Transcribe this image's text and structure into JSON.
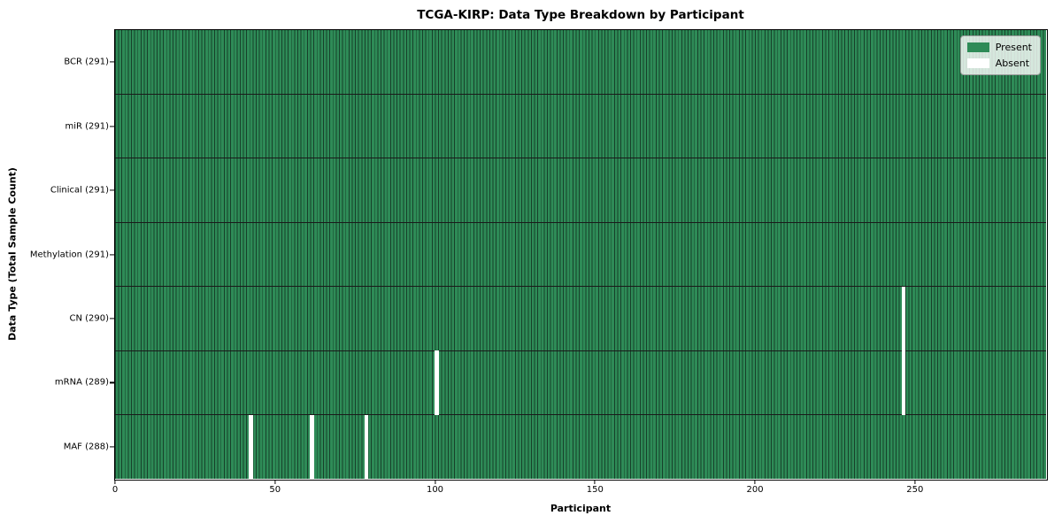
{
  "title": "TCGA-KIRP: Data Type Breakdown by Participant",
  "axes": {
    "xlabel": "Participant",
    "ylabel": "Data Type (Total Sample Count)"
  },
  "legend": {
    "items": [
      {
        "label": "Present",
        "color": "#2e8b57"
      },
      {
        "label": "Absent",
        "color": "#ffffff"
      }
    ]
  },
  "colors": {
    "present": "#2e8b57",
    "bar_edge": "#17402a",
    "absent": "#ffffff",
    "row_divider": "#1a1a1a",
    "spine": "#000000",
    "legend_bg": "rgba(255,255,255,0.8)",
    "legend_border": "#999999"
  },
  "chart_data": {
    "type": "heatmap",
    "title": "TCGA-KIRP: Data Type Breakdown by Participant",
    "xlabel": "Participant",
    "ylabel": "Data Type (Total Sample Count)",
    "n_participants": 291,
    "xlim": [
      0,
      291
    ],
    "x_ticks": [
      0,
      50,
      100,
      150,
      200,
      250
    ],
    "grid": false,
    "legend": [
      "Present",
      "Absent"
    ],
    "legend_position": "upper right",
    "cell_values": {
      "present": 1,
      "absent": 0
    },
    "rows": [
      {
        "label": "BCR (291)",
        "data_type": "BCR",
        "present_count": 291,
        "absent_participants": []
      },
      {
        "label": "miR (291)",
        "data_type": "miR",
        "present_count": 291,
        "absent_participants": []
      },
      {
        "label": "Clinical (291)",
        "data_type": "Clinical",
        "present_count": 291,
        "absent_participants": []
      },
      {
        "label": "Methylation (291)",
        "data_type": "Methylation",
        "present_count": 291,
        "absent_participants": []
      },
      {
        "label": "CN (290)",
        "data_type": "CN",
        "present_count": 290,
        "absent_participants": [
          246
        ]
      },
      {
        "label": "mRNA (289)",
        "data_type": "mRNA",
        "present_count": 289,
        "absent_participants": [
          100,
          246
        ]
      },
      {
        "label": "MAF (288)",
        "data_type": "MAF",
        "present_count": 288,
        "absent_participants": [
          42,
          61,
          78
        ]
      }
    ]
  }
}
